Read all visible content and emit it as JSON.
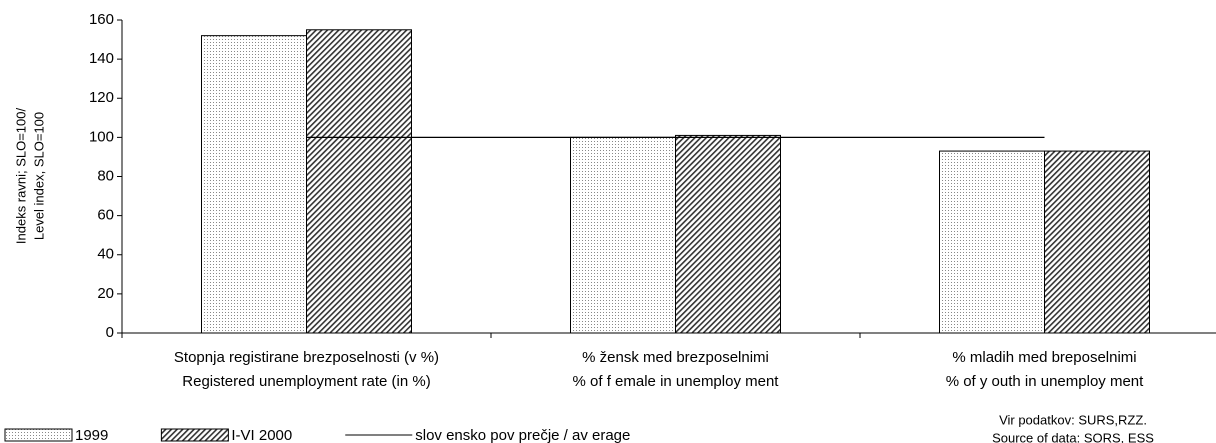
{
  "chart_data": {
    "type": "bar",
    "y_label": [
      "Indeks ravni; SLO=100/",
      "Level index, SLO=100"
    ],
    "categories": [
      [
        "Stopnja registirane brezposelnosti (v %)",
        "Registered unemployment rate (in %)"
      ],
      [
        "% žensk med  brezposelnimi",
        "% of f emale in unemploy ment"
      ],
      [
        "% mladih med breposelnimi",
        "% of y outh in unemploy ment"
      ]
    ],
    "series": [
      {
        "name": "1999",
        "pattern": "dots",
        "color": "#000000",
        "values": [
          152,
          100,
          93
        ]
      },
      {
        "name": "I-VI 2000",
        "pattern": "hatch",
        "color": "#000000",
        "values": [
          155,
          101,
          93
        ]
      },
      {
        "name": "slov ensko pov prečje / av erage",
        "type": "line",
        "color": "#000000",
        "values": [
          100,
          100,
          100
        ]
      }
    ],
    "ylim": [
      0,
      160
    ],
    "yticks": [
      0,
      20,
      40,
      60,
      80,
      100,
      120,
      140,
      160
    ],
    "source": [
      "Vir podatkov: SURS,RZZ.",
      "Source of data: SORS, ESS"
    ]
  }
}
